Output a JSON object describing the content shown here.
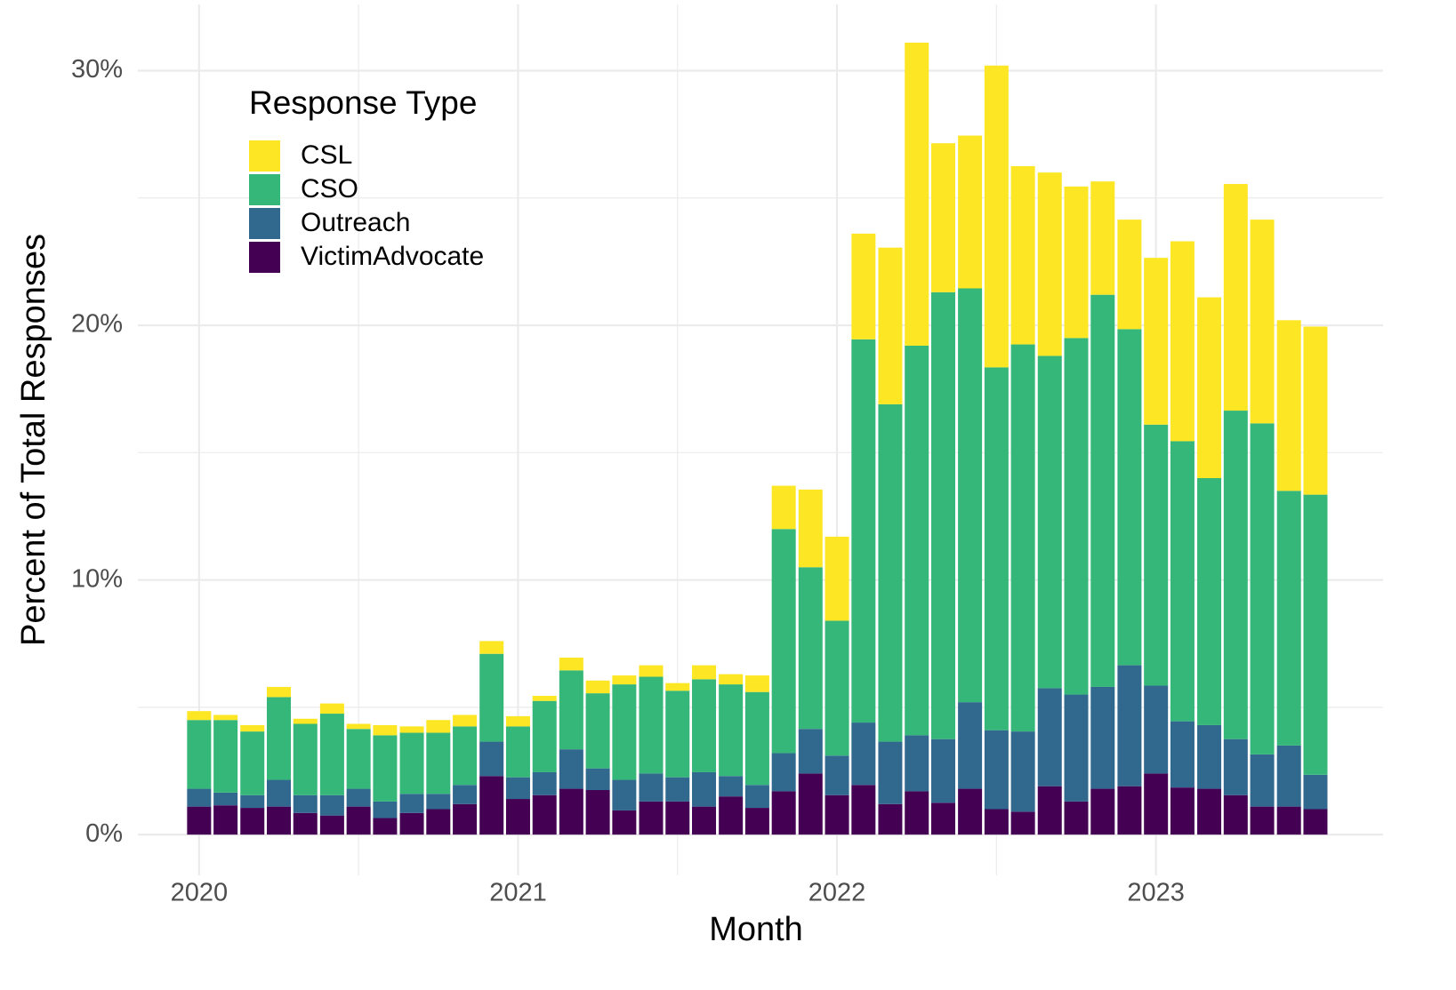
{
  "chart_data": {
    "type": "stacked_bar",
    "x_label": "Month",
    "y_label": "Percent of Total Responses",
    "legend_title": "Response Type",
    "x": [
      2020,
      2020.083,
      2020.167,
      2020.25,
      2020.333,
      2020.417,
      2020.5,
      2020.583,
      2020.667,
      2020.75,
      2020.833,
      2020.917,
      2021,
      2021.083,
      2021.167,
      2021.25,
      2021.333,
      2021.417,
      2021.5,
      2021.583,
      2021.667,
      2021.75,
      2021.833,
      2021.917,
      2022,
      2022.083,
      2022.167,
      2022.25,
      2022.333,
      2022.417,
      2022.5,
      2022.583,
      2022.667,
      2022.75,
      2022.833,
      2022.917,
      2023,
      2023.083,
      2023.167,
      2023.25,
      2023.333,
      2023.417,
      2023.5
    ],
    "series": [
      {
        "name": "CSL",
        "color": "#fde725",
        "values": [
          0.35,
          0.2,
          0.25,
          0.4,
          0.2,
          0.4,
          0.2,
          0.4,
          0.25,
          0.5,
          0.45,
          0.5,
          0.4,
          0.2,
          0.5,
          0.5,
          0.35,
          0.45,
          0.3,
          0.55,
          0.4,
          0.65,
          1.7,
          3.05,
          3.3,
          4.15,
          6.15,
          11.9,
          5.85,
          6.0,
          11.85,
          7.0,
          7.2,
          5.95,
          4.45,
          4.3,
          6.55,
          7.85,
          7.1,
          8.9,
          8.0,
          6.7,
          6.6
        ]
      },
      {
        "name": "CSO",
        "color": "#35b779",
        "values": [
          2.7,
          2.85,
          2.5,
          3.25,
          2.8,
          3.2,
          2.35,
          2.6,
          2.4,
          2.4,
          2.3,
          3.45,
          2.0,
          2.8,
          3.1,
          2.95,
          3.75,
          3.8,
          3.4,
          3.65,
          3.6,
          3.65,
          8.8,
          6.35,
          5.3,
          15.05,
          13.25,
          15.3,
          17.55,
          16.25,
          14.25,
          15.2,
          13.05,
          14.0,
          15.4,
          13.2,
          10.25,
          11.0,
          9.7,
          12.9,
          13.0,
          10.0,
          11.0
        ]
      },
      {
        "name": "Outreach",
        "color": "#31688e",
        "values": [
          0.7,
          0.5,
          0.5,
          1.05,
          0.7,
          0.8,
          0.7,
          0.65,
          0.75,
          0.6,
          0.75,
          1.35,
          0.85,
          0.9,
          1.55,
          0.85,
          1.2,
          1.1,
          0.95,
          1.35,
          0.8,
          0.9,
          1.5,
          1.75,
          1.55,
          2.45,
          2.45,
          2.2,
          2.5,
          3.4,
          3.1,
          3.15,
          3.85,
          4.2,
          4.0,
          4.75,
          3.45,
          2.6,
          2.5,
          2.2,
          2.05,
          2.4,
          1.35
        ]
      },
      {
        "name": "VictimAdvocate",
        "color": "#440154",
        "values": [
          1.1,
          1.15,
          1.05,
          1.1,
          0.85,
          0.75,
          1.1,
          0.65,
          0.85,
          1.0,
          1.2,
          2.3,
          1.4,
          1.55,
          1.8,
          1.75,
          0.95,
          1.3,
          1.3,
          1.1,
          1.5,
          1.05,
          1.7,
          2.4,
          1.55,
          1.95,
          1.2,
          1.7,
          1.25,
          1.8,
          1.0,
          0.9,
          1.9,
          1.3,
          1.8,
          1.9,
          2.4,
          1.85,
          1.8,
          1.55,
          1.1,
          1.1,
          1.0
        ]
      }
    ],
    "xlim": [
      2019.808,
      2023.712
    ],
    "xticks": [
      2020,
      2021,
      2022,
      2023
    ],
    "ylim": [
      -1.6,
      32.6
    ],
    "yticks": [
      {
        "value": 0,
        "label": "0%"
      },
      {
        "value": 10,
        "label": "10%"
      },
      {
        "value": 20,
        "label": "20%"
      },
      {
        "value": 30,
        "label": "30%"
      }
    ],
    "grid": true,
    "legend_position": "top-left"
  }
}
